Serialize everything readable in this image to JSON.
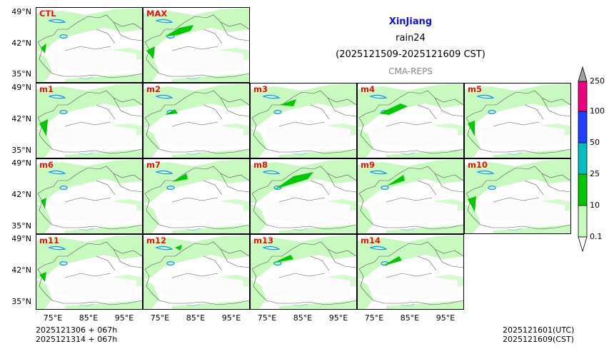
{
  "header": {
    "region": "XinJiang",
    "variable": "rain24",
    "period": "(2025121509-2025121609 CST)",
    "model": "CMA-REPS",
    "colors": {
      "region": "#1010e0",
      "model": "#888888",
      "label": "#e8110f"
    }
  },
  "panels": [
    "CTL",
    "MAX",
    "m1",
    "m2",
    "m3",
    "m4",
    "m5",
    "m6",
    "m7",
    "m8",
    "m9",
    "m10",
    "m11",
    "m12",
    "m13",
    "m14"
  ],
  "axes": {
    "lat_ticks": [
      "49°N",
      "42°N",
      "35°N"
    ],
    "lon_ticks": [
      "75°E",
      "85°E",
      "95°E"
    ]
  },
  "colorbar": {
    "levels": [
      "0.1",
      "10",
      "25",
      "50",
      "100",
      "250"
    ],
    "colors": [
      "#ffffff",
      "#c8fac0",
      "#00c800",
      "#00c0c0",
      "#2040ff",
      "#f00080"
    ],
    "under": "#ffffff",
    "over": "#a0a0a0"
  },
  "footer": {
    "init_line1": "2025121306  +  067h",
    "init_line2": "2025121314  +  067h",
    "valid_utc": "2025121601(UTC)",
    "valid_cst": "2025121609(CST)"
  }
}
